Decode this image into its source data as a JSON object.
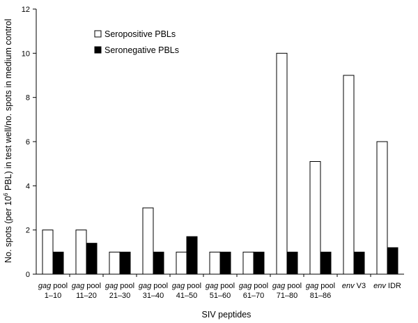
{
  "chart_data": {
    "type": "bar",
    "title": "",
    "xlabel": "SIV peptides",
    "ylabel_parts": [
      "No. spots (per 10",
      "6",
      " PBL) in test well/no. spots in medium control"
    ],
    "ylim": [
      0,
      12
    ],
    "yticks": [
      "0",
      "2",
      "4",
      "6",
      "8",
      "10",
      "12"
    ],
    "categories": [
      {
        "italic": "gag",
        "rest": " pool",
        "line2": "1–10"
      },
      {
        "italic": "gag",
        "rest": " pool",
        "line2": "11–20"
      },
      {
        "italic": "gag",
        "rest": " pool",
        "line2": "21–30"
      },
      {
        "italic": "gag",
        "rest": " pool",
        "line2": "31–40"
      },
      {
        "italic": "gag",
        "rest": " pool",
        "line2": "41–50"
      },
      {
        "italic": "gag",
        "rest": " pool",
        "line2": "51–60"
      },
      {
        "italic": "gag",
        "rest": " pool",
        "line2": "61–70"
      },
      {
        "italic": "gag",
        "rest": " pool",
        "line2": "71–80"
      },
      {
        "italic": "gag",
        "rest": " pool",
        "line2": "81–86"
      },
      {
        "italic": "env",
        "rest": " V3",
        "line2": ""
      },
      {
        "italic": "env",
        "rest": " IDR",
        "line2": ""
      }
    ],
    "series": [
      {
        "name": "Seropositive PBLs",
        "fill": "#ffffff",
        "values": [
          2,
          2,
          1,
          3,
          1,
          1,
          1,
          10,
          5.1,
          9,
          6
        ]
      },
      {
        "name": "Seronegative PBLs",
        "fill": "#000000",
        "values": [
          1,
          1.4,
          1,
          1,
          1.7,
          1,
          1,
          1,
          1,
          1,
          1.2
        ]
      }
    ],
    "legend_position": "top-left"
  }
}
